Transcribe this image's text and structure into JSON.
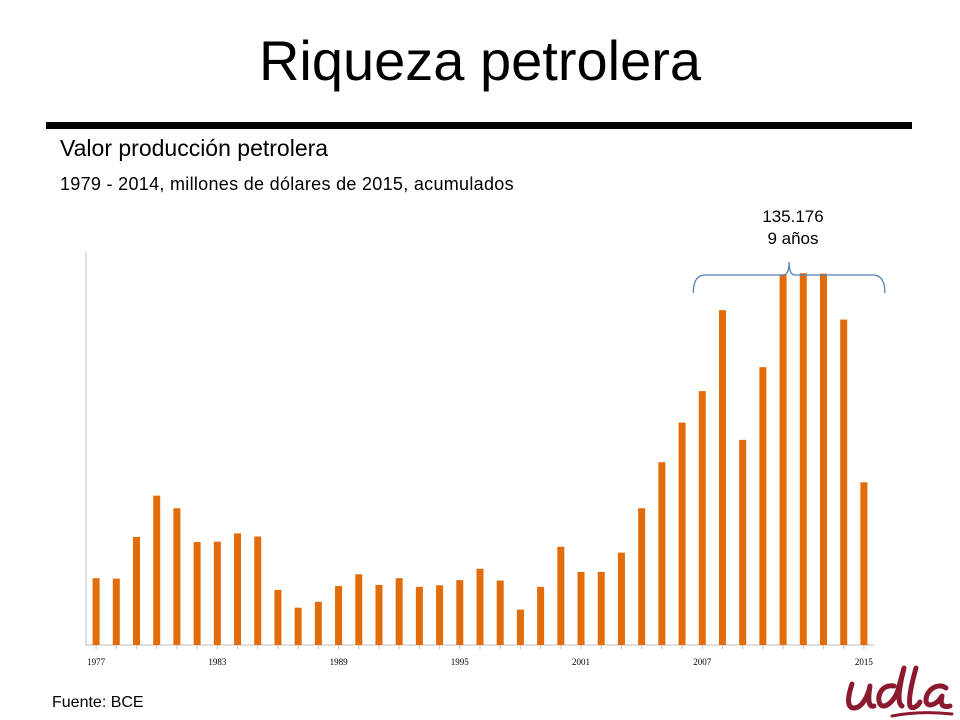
{
  "slide": {
    "title": "Riqueza petrolera",
    "subtitle": "Valor producción petrolera",
    "subsubtitle": "1979 - 2014, millones de dólares de 2015, acumulados",
    "source": "Fuente: BCE"
  },
  "annotation": {
    "line1": "135.176",
    "line2": "9 años",
    "years_from": 2007,
    "years_to": 2015
  },
  "colors": {
    "bar": "#E36C0A",
    "bracket": "#4F81BD",
    "axis": "#BFBFBF",
    "logo": "#8B1A2E"
  },
  "logo_name": "udla-logo",
  "chart_data": {
    "type": "bar",
    "title": "",
    "xlabel": "",
    "ylabel": "",
    "x": [
      1977,
      1978,
      1979,
      1980,
      1981,
      1982,
      1983,
      1984,
      1985,
      1986,
      1987,
      1988,
      1989,
      1990,
      1991,
      1992,
      1993,
      1994,
      1995,
      1996,
      1997,
      1998,
      1999,
      2000,
      2001,
      2002,
      2003,
      2004,
      2005,
      2006,
      2007,
      2008,
      2009,
      2010,
      2011,
      2012,
      2013,
      2014,
      2015
    ],
    "values": [
      170,
      169,
      275,
      380,
      348,
      262,
      263,
      284,
      276,
      140,
      95,
      110,
      150,
      180,
      153,
      170,
      148,
      152,
      165,
      194,
      164,
      90,
      148,
      250,
      186,
      186,
      235,
      348,
      465,
      566,
      646,
      852,
      522,
      707,
      943,
      946,
      945,
      828,
      414
    ],
    "tick_labels": [
      "1977",
      "1983",
      "1989",
      "1995",
      "2001",
      "2007",
      "2015"
    ],
    "ylim": [
      0,
      1000
    ],
    "grid": false,
    "legend": "none"
  }
}
